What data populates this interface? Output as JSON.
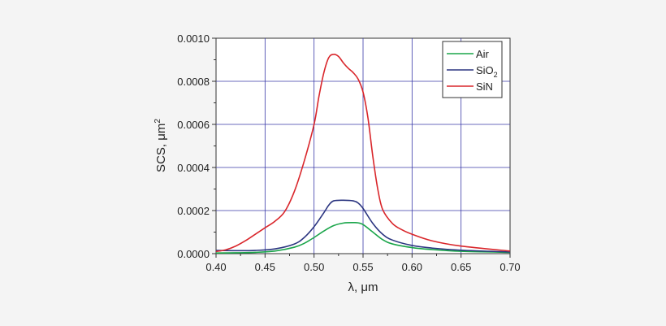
{
  "chart_data": {
    "type": "line",
    "title": "",
    "xlabel": "λ, μm",
    "ylabel_main": "SCS, μm",
    "ylabel_sup": "2",
    "xlim": [
      0.4,
      0.7
    ],
    "ylim": [
      0.0,
      0.001
    ],
    "grid": true,
    "legend_position": "top-right",
    "x_ticks": [
      0.4,
      0.45,
      0.5,
      0.55,
      0.6,
      0.65,
      0.7
    ],
    "y_ticks": [
      0.0,
      0.0002,
      0.0004,
      0.0006,
      0.0008,
      0.001
    ],
    "x_tick_labels": [
      "0.40",
      "0.45",
      "0.50",
      "0.55",
      "0.60",
      "0.65",
      "0.70"
    ],
    "y_tick_labels": [
      "0.0000",
      "0.0002",
      "0.0004",
      "0.0006",
      "0.0008",
      "0.0010"
    ],
    "series": [
      {
        "name": "Air",
        "name_sub": "",
        "color": "#1aa54a",
        "x": [
          0.4,
          0.42,
          0.44,
          0.46,
          0.48,
          0.49,
          0.5,
          0.51,
          0.52,
          0.53,
          0.54,
          0.545,
          0.55,
          0.56,
          0.57,
          0.58,
          0.6,
          0.62,
          0.65,
          0.7
        ],
        "y": [
          3e-06,
          4e-06,
          6e-06,
          1.2e-05,
          3e-05,
          4.8e-05,
          7.5e-05,
          0.000105,
          0.00013,
          0.000142,
          0.000144,
          0.000143,
          0.000135,
          0.0001,
          6.5e-05,
          4.5e-05,
          2.8e-05,
          1.9e-05,
          1.1e-05,
          6e-06
        ]
      },
      {
        "name": "SiO",
        "name_sub": "2",
        "color": "#2b3580",
        "x": [
          0.4,
          0.42,
          0.44,
          0.46,
          0.48,
          0.49,
          0.5,
          0.51,
          0.515,
          0.52,
          0.53,
          0.54,
          0.545,
          0.55,
          0.56,
          0.57,
          0.58,
          0.6,
          0.62,
          0.65,
          0.7
        ],
        "y": [
          1.5e-05,
          1.4e-05,
          1.5e-05,
          2.2e-05,
          4.5e-05,
          7.5e-05,
          0.000125,
          0.00019,
          0.000225,
          0.000245,
          0.000248,
          0.000245,
          0.000235,
          0.00021,
          0.00014,
          9e-05,
          6.3e-05,
          3.8e-05,
          2.6e-05,
          1.6e-05,
          8e-06
        ]
      },
      {
        "name": "SiN",
        "name_sub": "",
        "color": "#d9262b",
        "x": [
          0.4,
          0.41,
          0.42,
          0.43,
          0.44,
          0.45,
          0.46,
          0.47,
          0.48,
          0.49,
          0.5,
          0.505,
          0.51,
          0.515,
          0.52,
          0.525,
          0.53,
          0.535,
          0.54,
          0.545,
          0.55,
          0.555,
          0.56,
          0.565,
          0.57,
          0.58,
          0.59,
          0.6,
          0.62,
          0.65,
          0.7
        ],
        "y": [
          1e-05,
          1.8e-05,
          3.5e-05,
          6e-05,
          9e-05,
          0.00012,
          0.00015,
          0.000195,
          0.00029,
          0.00043,
          0.0006,
          0.00073,
          0.00084,
          0.00091,
          0.000925,
          0.000915,
          0.000885,
          0.00086,
          0.00084,
          0.00081,
          0.00075,
          0.00063,
          0.00045,
          0.0003,
          0.000205,
          0.00014,
          0.00011,
          9e-05,
          6e-05,
          3.5e-05,
          1.2e-05
        ]
      }
    ]
  }
}
